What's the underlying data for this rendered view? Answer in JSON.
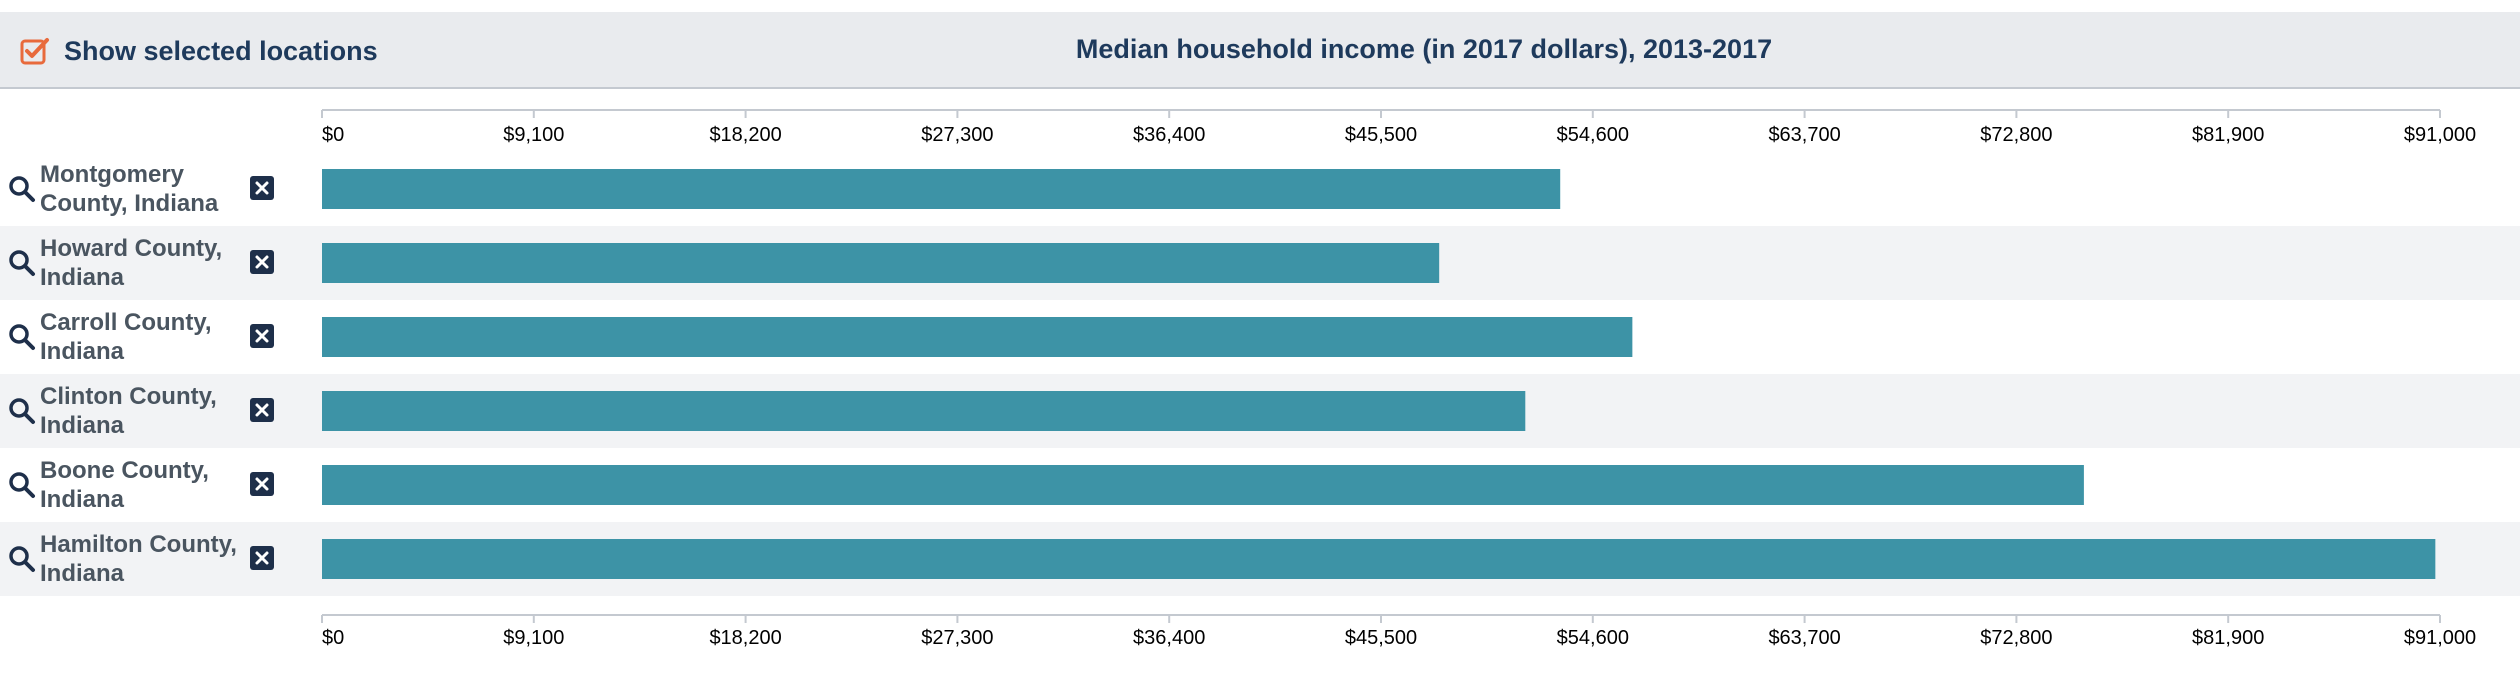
{
  "toggle": {
    "label": "Show selected locations",
    "checked": true
  },
  "accent_color": "#e86a3c",
  "bar_color": "#3d93a6",
  "icons": {
    "search": "search-icon",
    "remove": "close-icon",
    "toggle": "checkbox-icon"
  },
  "chart_data": {
    "type": "bar",
    "orientation": "horizontal",
    "title": "Median household income (in 2017 dollars), 2013-2017",
    "categories": [
      "Montgomery County, Indiana",
      "Howard County, Indiana",
      "Carroll County, Indiana",
      "Clinton County, Indiana",
      "Boone County, Indiana",
      "Hamilton County, Indiana"
    ],
    "category_lines": [
      [
        "Montgomery",
        "County, Indiana"
      ],
      [
        "Howard County,",
        "Indiana"
      ],
      [
        "Carroll County,",
        "Indiana"
      ],
      [
        "Clinton County,",
        "Indiana"
      ],
      [
        "Boone County,",
        "Indiana"
      ],
      [
        "Hamilton County,",
        "Indiana"
      ]
    ],
    "values": [
      53200,
      48000,
      56300,
      51700,
      75700,
      90800
    ],
    "xlim": [
      0,
      91000
    ],
    "ticks": [
      0,
      9100,
      18200,
      27300,
      36400,
      45500,
      54600,
      63700,
      72800,
      81900,
      91000
    ],
    "tick_labels": [
      "$0",
      "$9,100",
      "$18,200",
      "$27,300",
      "$36,400",
      "$45,500",
      "$54,600",
      "$63,700",
      "$72,800",
      "$81,900",
      "$91,000"
    ],
    "axis_positions": [
      "top",
      "bottom"
    ],
    "grid": false
  }
}
